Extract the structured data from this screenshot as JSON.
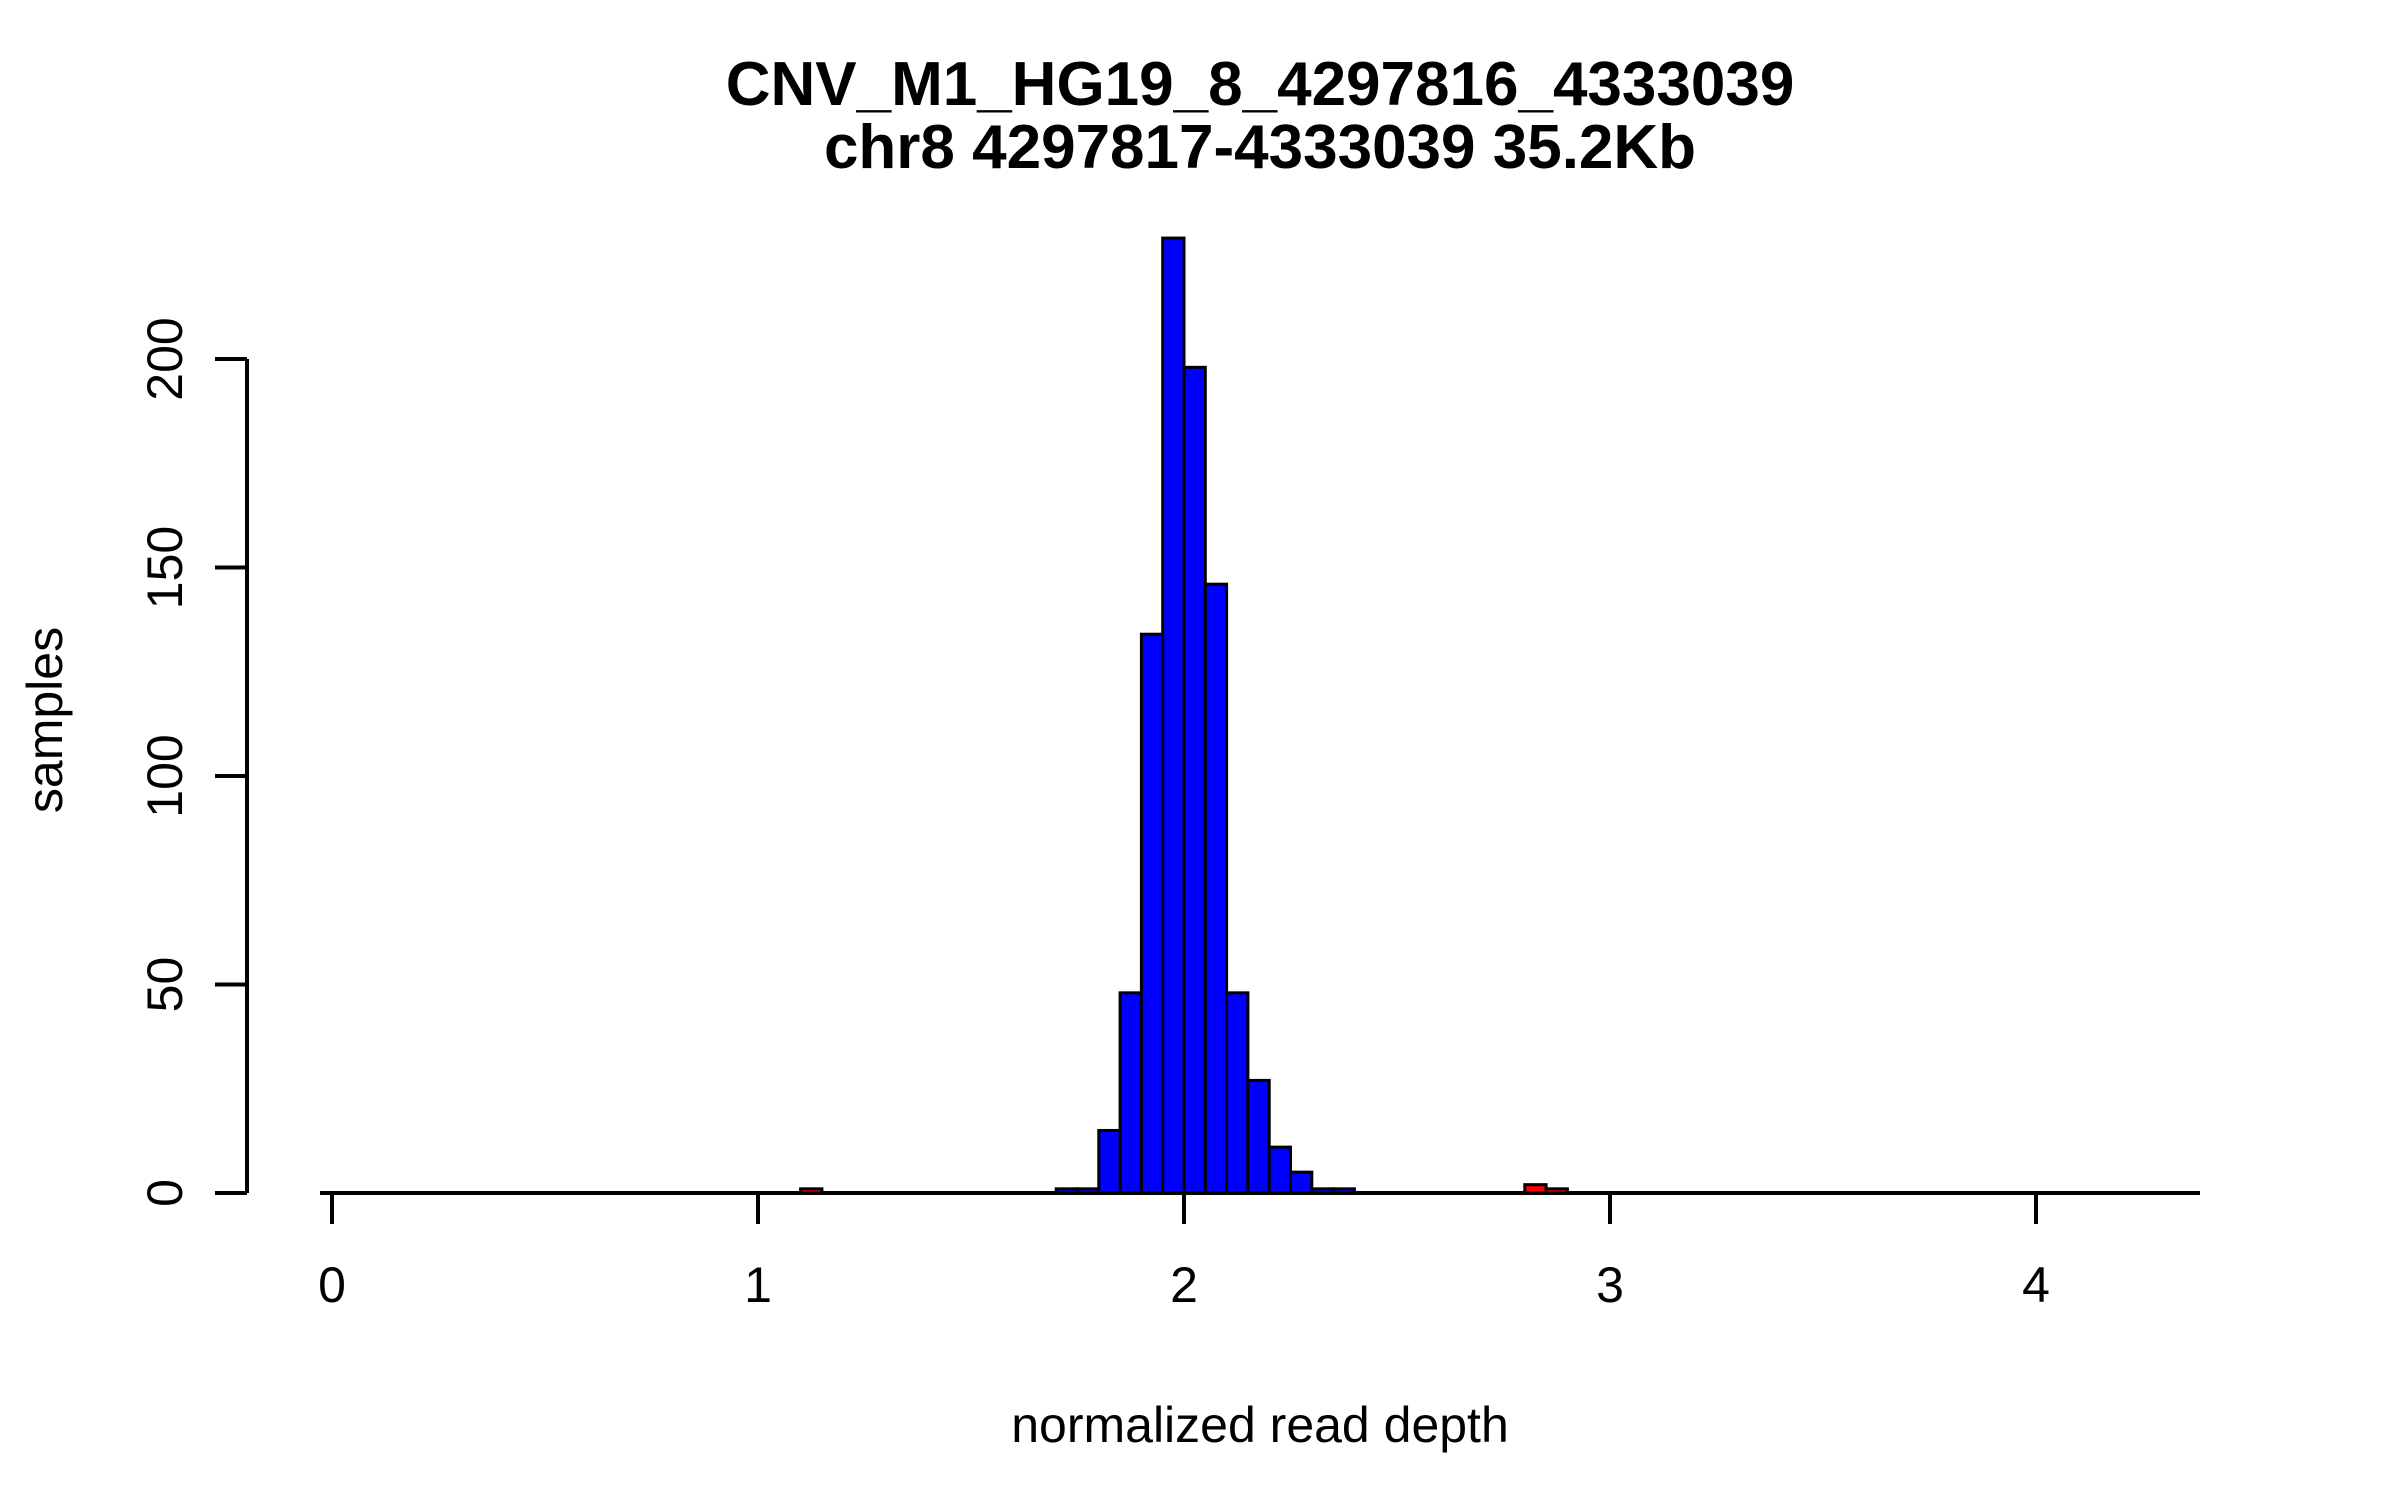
{
  "figure": {
    "title_line1": "CNV_M1_HG19_8_4297816_4333039",
    "title_line2": "chr8 4297817-4333039 35.2Kb",
    "xlabel": "normalized read depth",
    "ylabel": "samples"
  },
  "chart_data": {
    "type": "bar",
    "subtype": "histogram",
    "title": "CNV_M1_HG19_8_4297816_4333039",
    "subtitle": "chr8 4297817-4333039 35.2Kb",
    "xlabel": "normalized read depth",
    "ylabel": "samples",
    "grid": false,
    "legend": false,
    "xlim": [
      -0.03,
      4.39
    ],
    "ylim": [
      0,
      229
    ],
    "x_ticks": [
      0,
      1,
      2,
      3,
      4
    ],
    "y_ticks": [
      0,
      50,
      100,
      150,
      200
    ],
    "bin_width": 0.05,
    "colors": {
      "default_fill": "#0000ff",
      "highlight_fill": "#ff0000",
      "border": "#000000",
      "axis": "#000000",
      "background": "#ffffff"
    },
    "bins": [
      {
        "start": 1.1,
        "count": 1,
        "color": "red"
      },
      {
        "start": 1.7,
        "count": 1,
        "color": "blue"
      },
      {
        "start": 1.75,
        "count": 1,
        "color": "blue"
      },
      {
        "start": 1.8,
        "count": 15,
        "color": "blue"
      },
      {
        "start": 1.85,
        "count": 48,
        "color": "blue"
      },
      {
        "start": 1.9,
        "count": 134,
        "color": "blue"
      },
      {
        "start": 1.95,
        "count": 229,
        "color": "blue"
      },
      {
        "start": 2.0,
        "count": 198,
        "color": "blue"
      },
      {
        "start": 2.05,
        "count": 146,
        "color": "blue"
      },
      {
        "start": 2.1,
        "count": 48,
        "color": "blue"
      },
      {
        "start": 2.15,
        "count": 27,
        "color": "blue"
      },
      {
        "start": 2.2,
        "count": 11,
        "color": "blue"
      },
      {
        "start": 2.25,
        "count": 5,
        "color": "blue"
      },
      {
        "start": 2.3,
        "count": 1,
        "color": "blue"
      },
      {
        "start": 2.35,
        "count": 1,
        "color": "blue"
      },
      {
        "start": 2.8,
        "count": 2,
        "color": "red"
      },
      {
        "start": 2.85,
        "count": 1,
        "color": "red"
      }
    ]
  }
}
